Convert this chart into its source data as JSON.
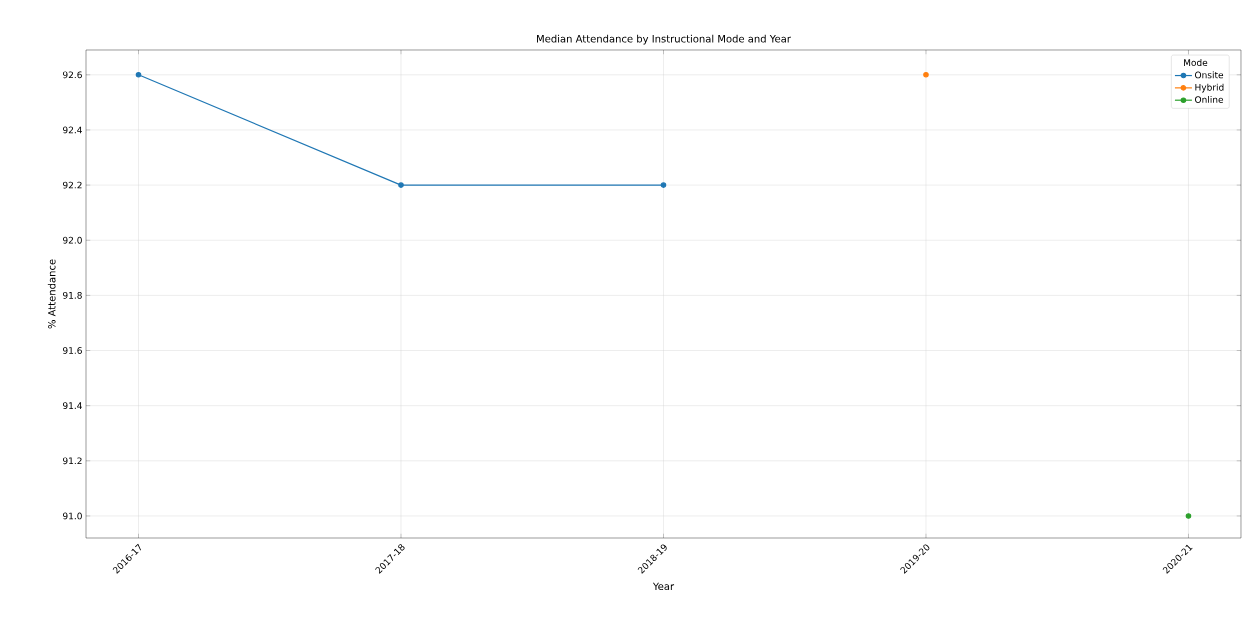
{
  "chart_data": {
    "type": "line",
    "title": "Median Attendance by Instructional Mode and Year",
    "xlabel": "Year",
    "ylabel": "% Attendance",
    "legend_title": "Mode",
    "categories": [
      "2016-17",
      "2017-18",
      "2018-19",
      "2019-20",
      "2020-21"
    ],
    "series": [
      {
        "name": "Onsite",
        "color": "#1f77b4",
        "values": [
          92.6,
          92.2,
          92.2,
          null,
          null
        ]
      },
      {
        "name": "Hybrid",
        "color": "#ff7f0e",
        "values": [
          null,
          null,
          null,
          92.6,
          null
        ]
      },
      {
        "name": "Online",
        "color": "#2ca02c",
        "values": [
          null,
          null,
          null,
          null,
          91.0
        ]
      }
    ],
    "ylim": [
      90.92,
      92.69
    ],
    "yticks": [
      {
        "value": 91.0,
        "label": "91.0"
      },
      91.2,
      91.4,
      91.6,
      91.8,
      {
        "value": 92.0,
        "label": "92.0"
      },
      92.2,
      92.4,
      92.6
    ],
    "grid": true,
    "legend": "top right",
    "marker": "circle",
    "line_style": "solid"
  }
}
